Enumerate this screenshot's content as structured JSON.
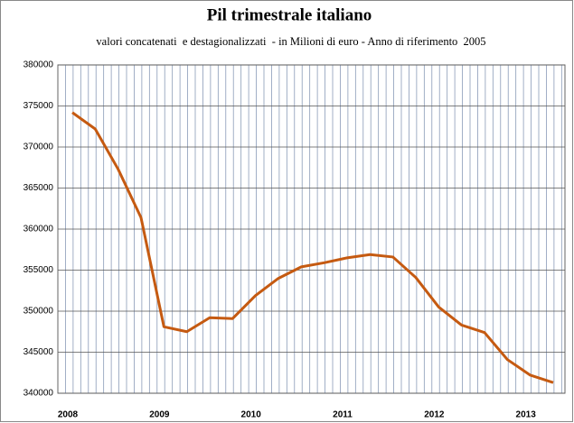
{
  "chart_data": {
    "type": "line",
    "title": "Pil trimestrale italiano",
    "subtitle": "valori concatenati  e destagionalizzati  - in Milioni di euro - Anno di riferimento  2005",
    "categories": [
      "2008",
      null,
      null,
      null,
      "2009",
      null,
      null,
      null,
      "2010",
      null,
      null,
      null,
      "2011",
      null,
      null,
      null,
      "2012",
      null,
      null,
      null,
      "2013",
      null
    ],
    "series": [
      {
        "color": "#c55a11",
        "values": [
          374200,
          372200,
          367300,
          361400,
          348100,
          347500,
          349200,
          349100,
          351900,
          354000,
          355400,
          355900,
          356500,
          356900,
          356600,
          354100,
          350500,
          348300,
          347400,
          344100,
          342200,
          341300
        ]
      }
    ],
    "ylim": [
      340000,
      380000
    ],
    "yticks": [
      340000,
      345000,
      350000,
      355000,
      360000,
      365000,
      370000,
      375000,
      380000
    ],
    "grid": true
  }
}
